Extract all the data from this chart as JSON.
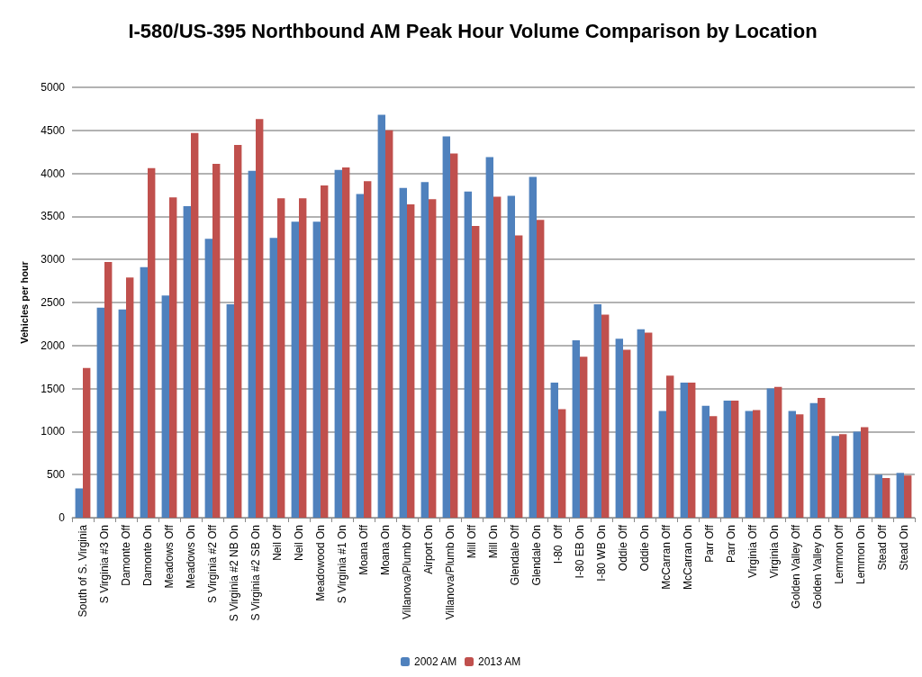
{
  "chart_data": {
    "type": "bar",
    "title": "I-580/US-395 Northbound AM Peak Hour Volume Comparison by Location",
    "ylabel": "Vehicles per hour",
    "categories": [
      "South of S. Virginia",
      "S Virginia #3 On",
      "Damonte Off",
      "Damonte On",
      "Meadows Off",
      "Meadows On",
      "S Virginia #2 Off",
      "S Virginia #2 NB On",
      "S Virginia #2 SB On",
      "Neil Off",
      "Neil On",
      "Meadowood On",
      "S Virginia #1 On",
      "Moana Off",
      "Moana On",
      "Villanova/Plumb Off",
      "Airport On",
      "Villanova/Plumb On",
      "Mill Off",
      "Mill On",
      "Glendale Off",
      "Glendale On",
      "I-80  Off",
      "I-80 EB On",
      "I-80 WB On",
      "Oddie Off",
      "Oddie On",
      "McCarran Off",
      "McCarran On",
      "Parr Off",
      "Parr On",
      "Virginia Off",
      "Virginia On",
      "Golden Valley Off",
      "Golden Valley On",
      "Lemmon Off",
      "Lemmon On",
      "Stead Off",
      "Stead On"
    ],
    "series": [
      {
        "name": "2002 AM",
        "color": "#4f81bd",
        "values": [
          340,
          2440,
          2420,
          2910,
          2580,
          3620,
          3240,
          2480,
          4030,
          3250,
          3440,
          3440,
          4040,
          3760,
          4680,
          3830,
          3900,
          4430,
          3790,
          4190,
          3740,
          3960,
          1570,
          2060,
          2480,
          2080,
          2190,
          1240,
          1570,
          1300,
          1360,
          1240,
          1500,
          1240,
          1330,
          950,
          1000,
          500,
          520
        ]
      },
      {
        "name": "2013 AM",
        "color": "#c0504d",
        "values": [
          1740,
          2970,
          2790,
          4060,
          3720,
          4470,
          4110,
          4330,
          4630,
          3710,
          3710,
          3860,
          4070,
          3910,
          4500,
          3640,
          3700,
          4230,
          3390,
          3730,
          3280,
          3460,
          1260,
          1870,
          2360,
          1950,
          2150,
          1650,
          1570,
          1180,
          1360,
          1250,
          1520,
          1200,
          1390,
          970,
          1050,
          460,
          490
        ]
      }
    ],
    "ylim": [
      0,
      5000
    ],
    "yticks": [
      0,
      500,
      1000,
      1500,
      2000,
      2500,
      3000,
      3500,
      4000,
      4500,
      5000
    ],
    "grid": "y",
    "legend": "bottom"
  }
}
